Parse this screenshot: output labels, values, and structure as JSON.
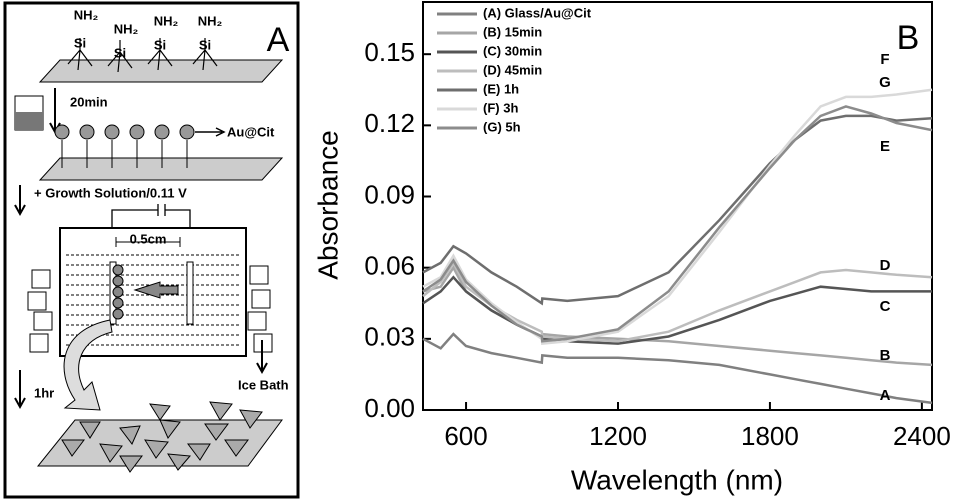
{
  "panel_a": {
    "label": "A",
    "amine_labels": [
      "NH₂",
      "NH₂",
      "NH₂",
      "NH₂"
    ],
    "silane_labels": [
      "Si",
      "Si",
      "Si",
      "Si"
    ],
    "step_time_1": "20min",
    "particle_label": "Au@Cit",
    "growth_label": "+ Growth Solution/0.11 V",
    "distance_label": "0.5cm",
    "ice_bath_label": "Ice Bath",
    "step_time_2": "1hr"
  },
  "chart_data": {
    "type": "line",
    "panel_label": "B",
    "xlabel": "Wavelength (nm)",
    "ylabel": "Absorbance",
    "x": [
      430,
      500,
      550,
      600,
      700,
      800,
      899,
      901,
      1000,
      1200,
      1400,
      1600,
      1800,
      1900,
      2000,
      2100,
      2200,
      2300,
      2440
    ],
    "series": [
      {
        "name": "(A)  Glass/Au@Cit",
        "color": "#808080",
        "values": [
          0.03,
          0.026,
          0.032,
          0.027,
          0.024,
          0.022,
          0.02,
          0.023,
          0.022,
          0.022,
          0.021,
          0.019,
          0.015,
          0.013,
          0.011,
          0.009,
          0.007,
          0.005,
          0.003
        ]
      },
      {
        "name": "(B)  15min",
        "color": "#a6a6a6",
        "values": [
          0.05,
          0.052,
          0.06,
          0.05,
          0.042,
          0.036,
          0.031,
          0.032,
          0.031,
          0.03,
          0.029,
          0.027,
          0.025,
          0.024,
          0.023,
          0.022,
          0.021,
          0.02,
          0.019
        ]
      },
      {
        "name": "(C)  30min",
        "color": "#555555",
        "values": [
          0.045,
          0.05,
          0.056,
          0.05,
          0.042,
          0.036,
          0.031,
          0.03,
          0.029,
          0.028,
          0.031,
          0.038,
          0.046,
          0.049,
          0.052,
          0.051,
          0.05,
          0.05,
          0.05
        ]
      },
      {
        "name": "(D)  45min",
        "color": "#bdbdbd",
        "values": [
          0.048,
          0.054,
          0.062,
          0.052,
          0.044,
          0.038,
          0.033,
          0.031,
          0.03,
          0.029,
          0.033,
          0.042,
          0.05,
          0.054,
          0.058,
          0.059,
          0.058,
          0.057,
          0.056
        ]
      },
      {
        "name": "(E)  1h",
        "color": "#6e6e6e",
        "values": [
          0.058,
          0.062,
          0.069,
          0.066,
          0.058,
          0.052,
          0.045,
          0.047,
          0.046,
          0.048,
          0.058,
          0.08,
          0.104,
          0.114,
          0.122,
          0.124,
          0.124,
          0.122,
          0.123
        ]
      },
      {
        "name": "(F)  3h",
        "color": "#d9d9d9",
        "values": [
          0.052,
          0.056,
          0.065,
          0.055,
          0.045,
          0.037,
          0.03,
          0.028,
          0.029,
          0.033,
          0.048,
          0.075,
          0.103,
          0.116,
          0.128,
          0.132,
          0.132,
          0.133,
          0.135
        ]
      },
      {
        "name": "(G)  5h",
        "color": "#8c8c8c",
        "values": [
          0.05,
          0.055,
          0.063,
          0.054,
          0.044,
          0.036,
          0.031,
          0.029,
          0.03,
          0.034,
          0.05,
          0.077,
          0.102,
          0.114,
          0.124,
          0.128,
          0.125,
          0.121,
          0.118
        ]
      }
    ],
    "end_labels": [
      "F",
      "G",
      "E",
      "D",
      "C",
      "B",
      "A"
    ],
    "xlim": [
      430,
      2440
    ],
    "xticks": [
      600,
      1200,
      1800,
      2400
    ],
    "ylim": [
      0,
      0.172
    ],
    "yticks": [
      {
        "value": 0,
        "label": "0.00"
      },
      0.03,
      0.06,
      0.09,
      0.12,
      0.15
    ],
    "legend": "upper left",
    "grid": false
  }
}
